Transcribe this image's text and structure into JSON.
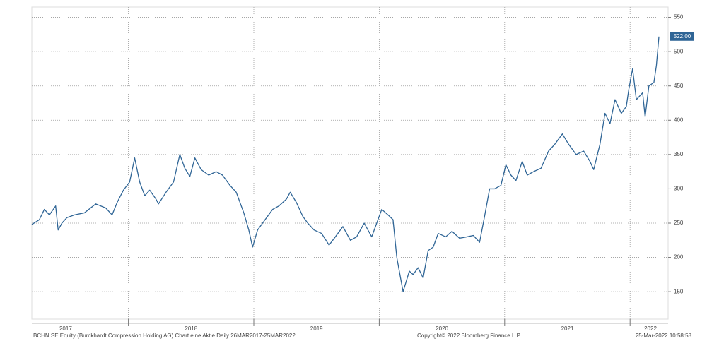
{
  "chart_data": {
    "type": "line",
    "x": [
      2017.23,
      2017.29,
      2017.33,
      2017.37,
      2017.42,
      2017.44,
      2017.47,
      2017.51,
      2017.57,
      2017.65,
      2017.74,
      2017.82,
      2017.87,
      2017.91,
      2017.96,
      2018.01,
      2018.05,
      2018.09,
      2018.13,
      2018.17,
      2018.22,
      2018.24,
      2018.3,
      2018.36,
      2018.41,
      2018.45,
      2018.49,
      2018.53,
      2018.58,
      2018.64,
      2018.7,
      2018.75,
      2018.81,
      2018.86,
      2018.92,
      2018.96,
      2018.99,
      2019.03,
      2019.09,
      2019.15,
      2019.2,
      2019.26,
      2019.29,
      2019.34,
      2019.39,
      2019.43,
      2019.48,
      2019.54,
      2019.6,
      2019.65,
      2019.71,
      2019.77,
      2019.82,
      2019.88,
      2019.94,
      2019.99,
      2020.02,
      2020.07,
      2020.11,
      2020.14,
      2020.19,
      2020.24,
      2020.27,
      2020.31,
      2020.35,
      2020.39,
      2020.43,
      2020.47,
      2020.53,
      2020.58,
      2020.64,
      2020.7,
      2020.75,
      2020.8,
      2020.84,
      2020.88,
      2020.92,
      2020.97,
      2021.01,
      2021.05,
      2021.09,
      2021.14,
      2021.18,
      2021.23,
      2021.29,
      2021.35,
      2021.4,
      2021.46,
      2021.51,
      2021.57,
      2021.63,
      2021.68,
      2021.71,
      2021.76,
      2021.8,
      2021.84,
      2021.88,
      2021.93,
      2021.97,
      2021.99,
      2022.02,
      2022.05,
      2022.1,
      2022.12,
      2022.15,
      2022.19,
      2022.21,
      2022.23
    ],
    "series": [
      {
        "color": "#2f6596",
        "values": [
          248,
          255,
          270,
          262,
          275,
          240,
          250,
          258,
          262,
          265,
          278,
          272,
          262,
          280,
          298,
          310,
          345,
          310,
          290,
          298,
          285,
          278,
          295,
          310,
          350,
          330,
          318,
          345,
          328,
          320,
          325,
          320,
          305,
          295,
          265,
          240,
          215,
          240,
          255,
          270,
          275,
          285,
          295,
          280,
          260,
          250,
          240,
          235,
          218,
          230,
          245,
          225,
          230,
          250,
          230,
          255,
          270,
          262,
          255,
          200,
          150,
          180,
          175,
          185,
          170,
          210,
          215,
          235,
          230,
          238,
          228,
          230,
          232,
          222,
          260,
          300,
          300,
          305,
          335,
          320,
          312,
          340,
          320,
          325,
          330,
          355,
          365,
          380,
          365,
          350,
          355,
          340,
          328,
          365,
          410,
          395,
          430,
          410,
          420,
          445,
          475,
          430,
          440,
          405,
          450,
          455,
          480,
          522
        ],
        "value_labels": [
          null,
          null,
          null,
          null,
          null,
          null,
          null,
          null,
          null,
          null,
          null,
          null,
          null,
          null,
          null,
          null,
          null,
          null,
          null,
          null,
          null,
          null,
          null,
          null,
          null,
          null,
          null,
          null,
          null,
          null,
          null,
          null,
          null,
          null,
          null,
          null,
          null,
          null,
          null,
          null,
          null,
          null,
          null,
          null,
          null,
          null,
          null,
          null,
          null,
          null,
          null,
          null,
          null,
          null,
          null,
          null,
          null,
          null,
          null,
          null,
          null,
          null,
          null,
          null,
          null,
          null,
          null,
          null,
          null,
          null,
          null,
          null,
          null,
          null,
          null,
          null,
          null,
          null,
          null,
          null,
          null,
          null,
          null,
          null,
          null,
          null,
          null,
          null,
          null,
          null,
          null,
          null,
          null,
          null,
          null,
          null,
          null,
          null,
          null,
          null,
          null,
          null,
          null,
          null,
          null,
          null,
          null,
          "522.00"
        ]
      }
    ],
    "xlim": [
      2017.23,
      2022.23
    ],
    "xticks": [
      2017,
      2018,
      2019,
      2020,
      2021,
      2022
    ],
    "ylim": [
      110,
      565
    ],
    "yticks": [
      150,
      200,
      250,
      300,
      350,
      400,
      450,
      500,
      550
    ],
    "grid": true,
    "footer_left": "BCHN SE Equity (Burckhardt Compression Holding AG) Chart eine Aktie  Daily 26MAR2017-25MAR2022",
    "footer_center": "Copyright© 2022 Bloomberg Finance L.P.",
    "footer_right": "25-Mar-2022 10:58:58"
  }
}
